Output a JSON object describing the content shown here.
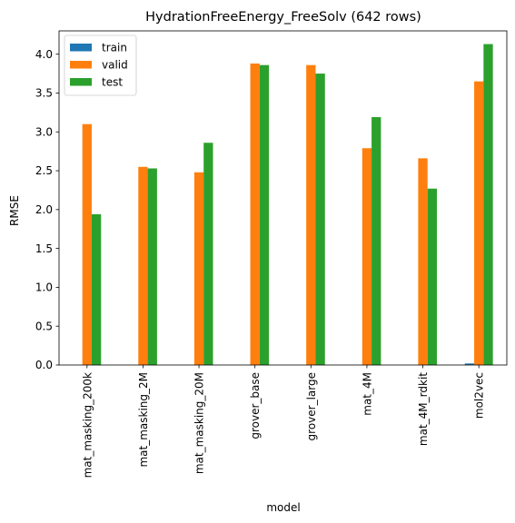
{
  "chart_data": {
    "type": "bar",
    "title": "HydrationFreeEnergy_FreeSolv (642 rows)",
    "xlabel": "model",
    "ylabel": "RMSE",
    "ylim": [
      0,
      4.3
    ],
    "yticks": [
      "0.0",
      "0.5",
      "1.0",
      "1.5",
      "2.0",
      "2.5",
      "3.0",
      "3.5",
      "4.0"
    ],
    "categories": [
      "mat_masking_200k",
      "mat_masking_2M",
      "mat_masking_20M",
      "grover_base",
      "grover_large",
      "mat_4M",
      "mat_4M_rdkit",
      "mol2vec"
    ],
    "series": [
      {
        "name": "train",
        "color": "#1f77b4",
        "values": [
          0,
          0,
          0,
          0,
          0,
          0,
          0,
          0.02
        ]
      },
      {
        "name": "valid",
        "color": "#ff7f0e",
        "values": [
          3.1,
          2.55,
          2.48,
          3.88,
          3.86,
          2.79,
          2.66,
          3.65
        ]
      },
      {
        "name": "test",
        "color": "#2ca02c",
        "values": [
          1.94,
          2.53,
          2.86,
          3.86,
          3.75,
          3.19,
          2.27,
          4.13
        ]
      }
    ],
    "legend": "top-left",
    "grid": false
  }
}
